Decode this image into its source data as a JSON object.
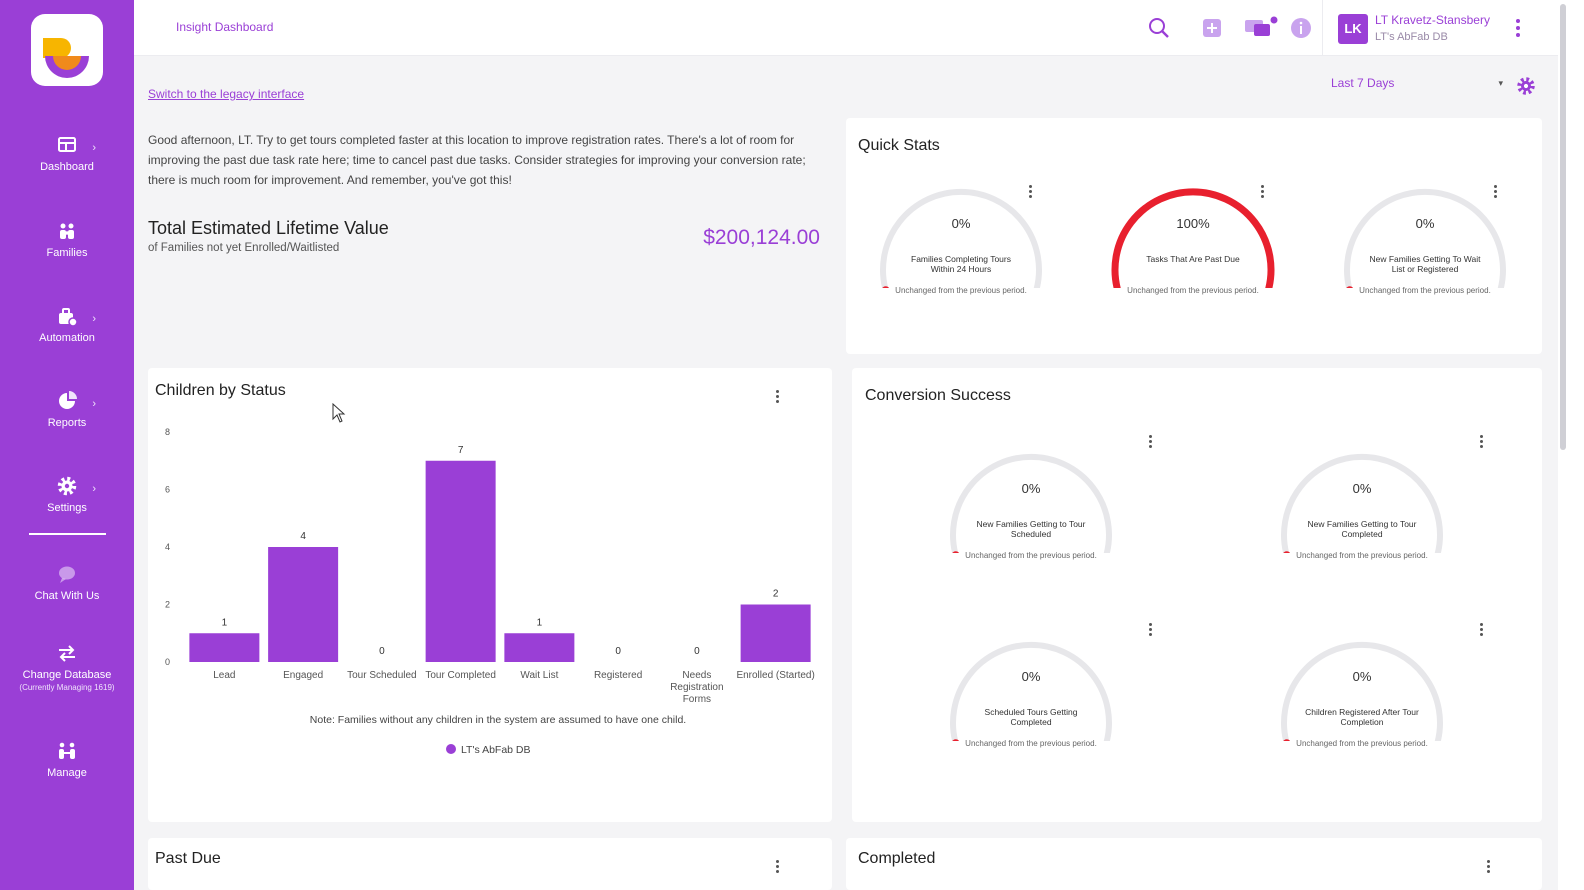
{
  "colors": {
    "brand": "#9a3fd6",
    "bar": "#9a3fd6",
    "gauge_full": "#e8202e",
    "gauge_track": "#e7e7ea",
    "gauge_dot": "#e8202e"
  },
  "sidebar": {
    "items": [
      {
        "label": "Dashboard",
        "icon": "dashboard-icon",
        "has_submenu": true
      },
      {
        "label": "Families",
        "icon": "families-icon",
        "has_submenu": false
      },
      {
        "label": "Automation",
        "icon": "automation-icon",
        "has_submenu": true
      },
      {
        "label": "Reports",
        "icon": "reports-icon",
        "has_submenu": true
      },
      {
        "label": "Settings",
        "icon": "gear-icon",
        "has_submenu": true
      },
      {
        "label": "Chat With Us",
        "icon": "chat-icon",
        "has_submenu": false
      },
      {
        "label": "Change Database",
        "sublabel": "(Currently Managing 1619)",
        "icon": "swap-icon",
        "has_submenu": false
      },
      {
        "label": "Manage",
        "icon": "manage-icon",
        "has_submenu": false
      }
    ]
  },
  "header": {
    "breadcrumb": "Insight Dashboard",
    "user": {
      "initials": "LK",
      "name": "LT Kravetz-Stansbery",
      "db": "LT's AbFab DB"
    }
  },
  "main": {
    "legacy_link": "Switch to the legacy interface",
    "date_range": "Last 7 Days",
    "greeting": "Good afternoon, LT. Try to get tours completed faster at this location to improve registration rates. There's a lot of room for improving the past due task rate here; time to cancel past due tasks. Consider strategies for improving your conversion rate; there is much room for improvement. And remember, you've got this!",
    "ltv": {
      "title": "Total Estimated Lifetime Value",
      "subtitle": "of Families not yet Enrolled/Waitlisted",
      "value": "$200,124.00"
    }
  },
  "quick_stats": {
    "title": "Quick Stats",
    "gauges": [
      {
        "value": "0%",
        "fraction": 0,
        "label": "Families Completing Tours Within 24 Hours",
        "note": "Unchanged from the previous period."
      },
      {
        "value": "100%",
        "fraction": 1,
        "label": "Tasks That Are Past Due",
        "note": "Unchanged from the previous period."
      },
      {
        "value": "0%",
        "fraction": 0,
        "label": "New Families Getting To Wait List or Registered",
        "note": "Unchanged from the previous period."
      }
    ]
  },
  "conversion": {
    "title": "Conversion Success",
    "gauges": [
      {
        "value": "0%",
        "fraction": 0,
        "label": "New Families Getting to Tour Scheduled",
        "note": "Unchanged from the previous period."
      },
      {
        "value": "0%",
        "fraction": 0,
        "label": "New Families Getting to Tour Completed",
        "note": "Unchanged from the previous period."
      },
      {
        "value": "0%",
        "fraction": 0,
        "label": "Scheduled Tours Getting Completed",
        "note": "Unchanged from the previous period."
      },
      {
        "value": "0%",
        "fraction": 0,
        "label": "Children Registered After Tour Completion",
        "note": "Unchanged from the previous period."
      }
    ]
  },
  "children_card": {
    "title": "Children by Status",
    "note": "Note: Families without any children in the system are assumed to have one child."
  },
  "chart_data": {
    "type": "bar",
    "title": "Children by Status",
    "categories": [
      "Lead",
      "Engaged",
      "Tour Scheduled",
      "Tour Completed",
      "Wait List",
      "Registered",
      "Needs Registration Forms",
      "Enrolled (Started)"
    ],
    "series": [
      {
        "name": "LT's AbFab DB",
        "values": [
          1,
          4,
          0,
          7,
          1,
          0,
          0,
          2
        ]
      }
    ],
    "ylim": [
      0,
      8
    ],
    "yticks": [
      0,
      2,
      4,
      6,
      8
    ],
    "legend": "bottom",
    "grid": false
  },
  "bottom_cards": {
    "past_due": "Past Due",
    "completed": "Completed"
  }
}
